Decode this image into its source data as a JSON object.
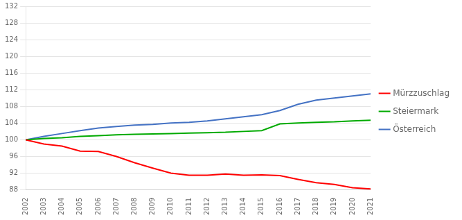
{
  "chart_data": {
    "type": "line",
    "x": [
      2002,
      2003,
      2004,
      2005,
      2006,
      2007,
      2008,
      2009,
      2010,
      2011,
      2012,
      2013,
      2014,
      2015,
      2016,
      2017,
      2018,
      2019,
      2020,
      2021
    ],
    "series": [
      {
        "name": "Mürzzuschlag",
        "color": "#ff0000",
        "values": [
          100.0,
          99.0,
          98.5,
          97.3,
          97.2,
          96.0,
          94.5,
          93.2,
          92.0,
          91.5,
          91.5,
          91.8,
          91.5,
          91.6,
          91.4,
          90.5,
          89.7,
          89.3,
          88.5,
          88.2
        ]
      },
      {
        "name": "Steiermark",
        "color": "#00aa00",
        "values": [
          100.0,
          100.3,
          100.5,
          100.8,
          101.0,
          101.2,
          101.3,
          101.4,
          101.5,
          101.6,
          101.7,
          101.8,
          102.0,
          102.2,
          103.8,
          104.0,
          104.2,
          104.3,
          104.5,
          104.7
        ]
      },
      {
        "name": "Österreich",
        "color": "#4472c4",
        "values": [
          100.0,
          100.8,
          101.5,
          102.2,
          102.8,
          103.2,
          103.5,
          103.7,
          104.0,
          104.2,
          104.5,
          105.0,
          105.5,
          106.0,
          107.0,
          108.5,
          109.5,
          110.0,
          110.5,
          111.0
        ]
      }
    ],
    "xlim": [
      2002,
      2021
    ],
    "xticks": [
      2002,
      2003,
      2004,
      2005,
      2006,
      2007,
      2008,
      2009,
      2010,
      2011,
      2012,
      2013,
      2014,
      2015,
      2016,
      2017,
      2018,
      2019,
      2020,
      2021
    ],
    "ylim": [
      88,
      132
    ],
    "yticks": [
      88,
      92,
      96,
      100,
      104,
      108,
      112,
      116,
      120,
      124,
      128,
      132
    ],
    "grid": "y",
    "legend": "right"
  }
}
